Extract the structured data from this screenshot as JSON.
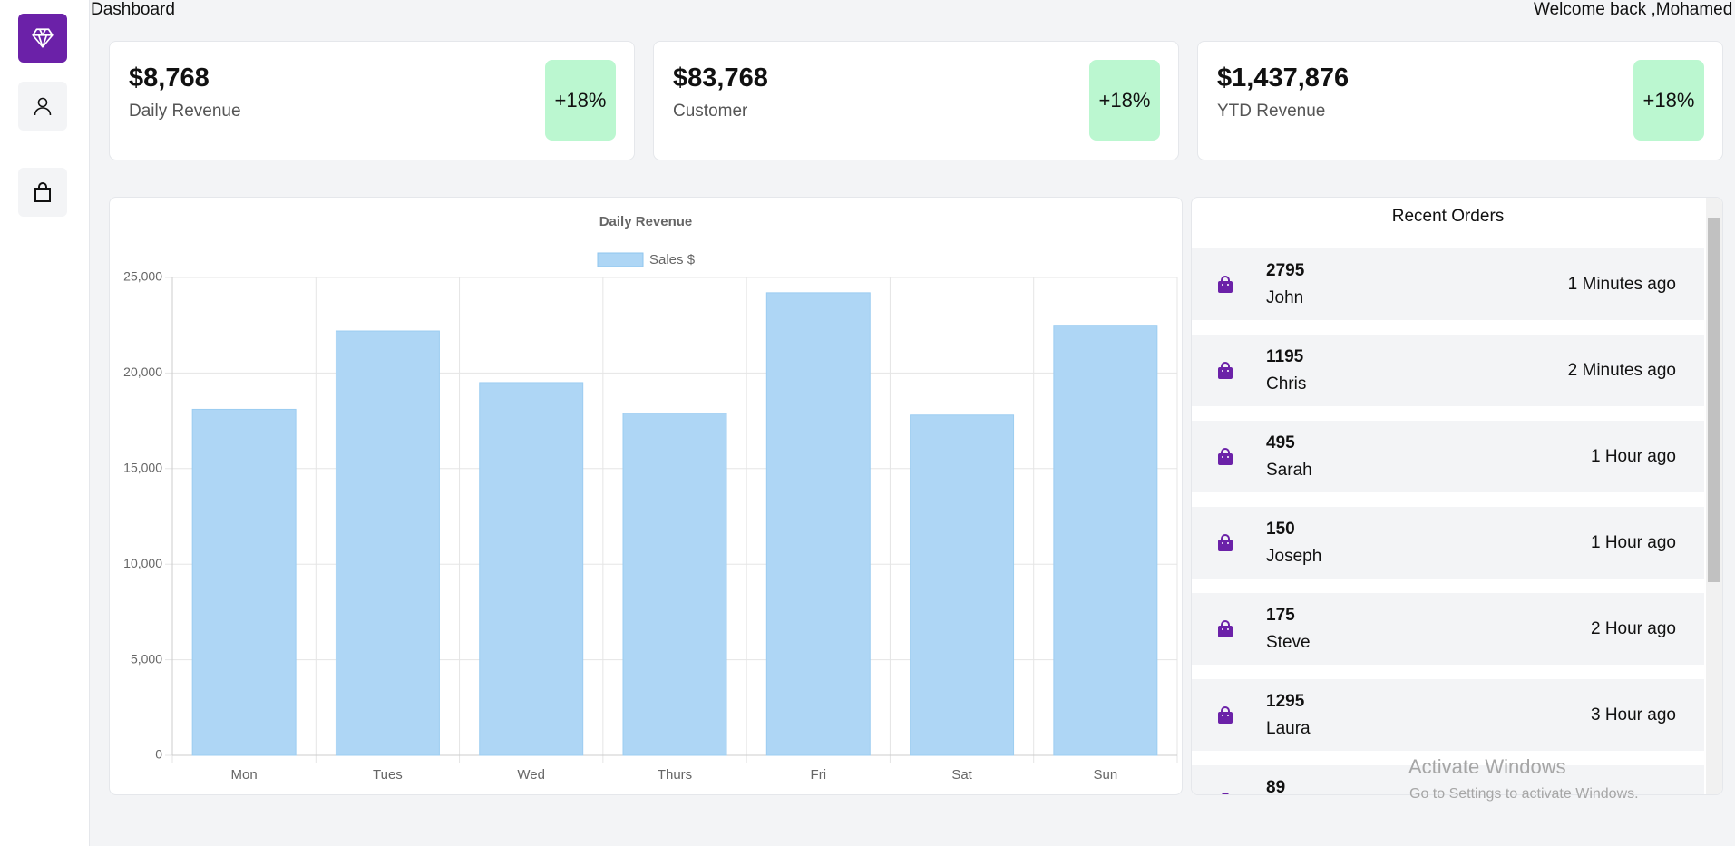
{
  "header": {
    "title": "Dashboard",
    "welcome": "Welcome back ,Mohamed"
  },
  "cards": [
    {
      "value": "$8,768",
      "label": "Daily Revenue",
      "change": "+18%"
    },
    {
      "value": "$83,768",
      "label": "Customer",
      "change": "+18%"
    },
    {
      "value": "$1,437,876",
      "label": "YTD Revenue",
      "change": "+18%"
    }
  ],
  "chart_data": {
    "type": "bar",
    "title": "Daily Revenue",
    "categories": [
      "Mon",
      "Tues",
      "Wed",
      "Thurs",
      "Fri",
      "Sat",
      "Sun"
    ],
    "series": [
      {
        "name": "Sales $",
        "color": "#aed6f5",
        "values": [
          18100,
          22200,
          19500,
          17900,
          24200,
          17800,
          22500
        ]
      }
    ],
    "ylim": [
      0,
      25000
    ],
    "yticks": [
      0,
      {
        "value": 5000,
        "label": "5,000"
      },
      {
        "value": 10000,
        "label": "10,000"
      },
      {
        "value": 15000,
        "label": "15,000"
      },
      {
        "value": 20000,
        "label": "20,000"
      },
      {
        "value": 25000,
        "label": "25,000"
      }
    ],
    "grid": true,
    "legend": "top"
  },
  "orders": {
    "title": "Recent Orders",
    "items": [
      {
        "id": "2795",
        "name": "John",
        "time": "1 Minutes ago"
      },
      {
        "id": "1195",
        "name": "Chris",
        "time": "2 Minutes ago"
      },
      {
        "id": "495",
        "name": "Sarah",
        "time": "1 Hour ago"
      },
      {
        "id": "150",
        "name": "Joseph",
        "time": "1 Hour ago"
      },
      {
        "id": "175",
        "name": "Steve",
        "time": "2 Hour ago"
      },
      {
        "id": "1295",
        "name": "Laura",
        "time": "3 Hour ago"
      },
      {
        "id": "89"
      }
    ]
  },
  "watermark": {
    "title": "Activate Windows",
    "subtitle": "Go to Settings to activate Windows."
  }
}
